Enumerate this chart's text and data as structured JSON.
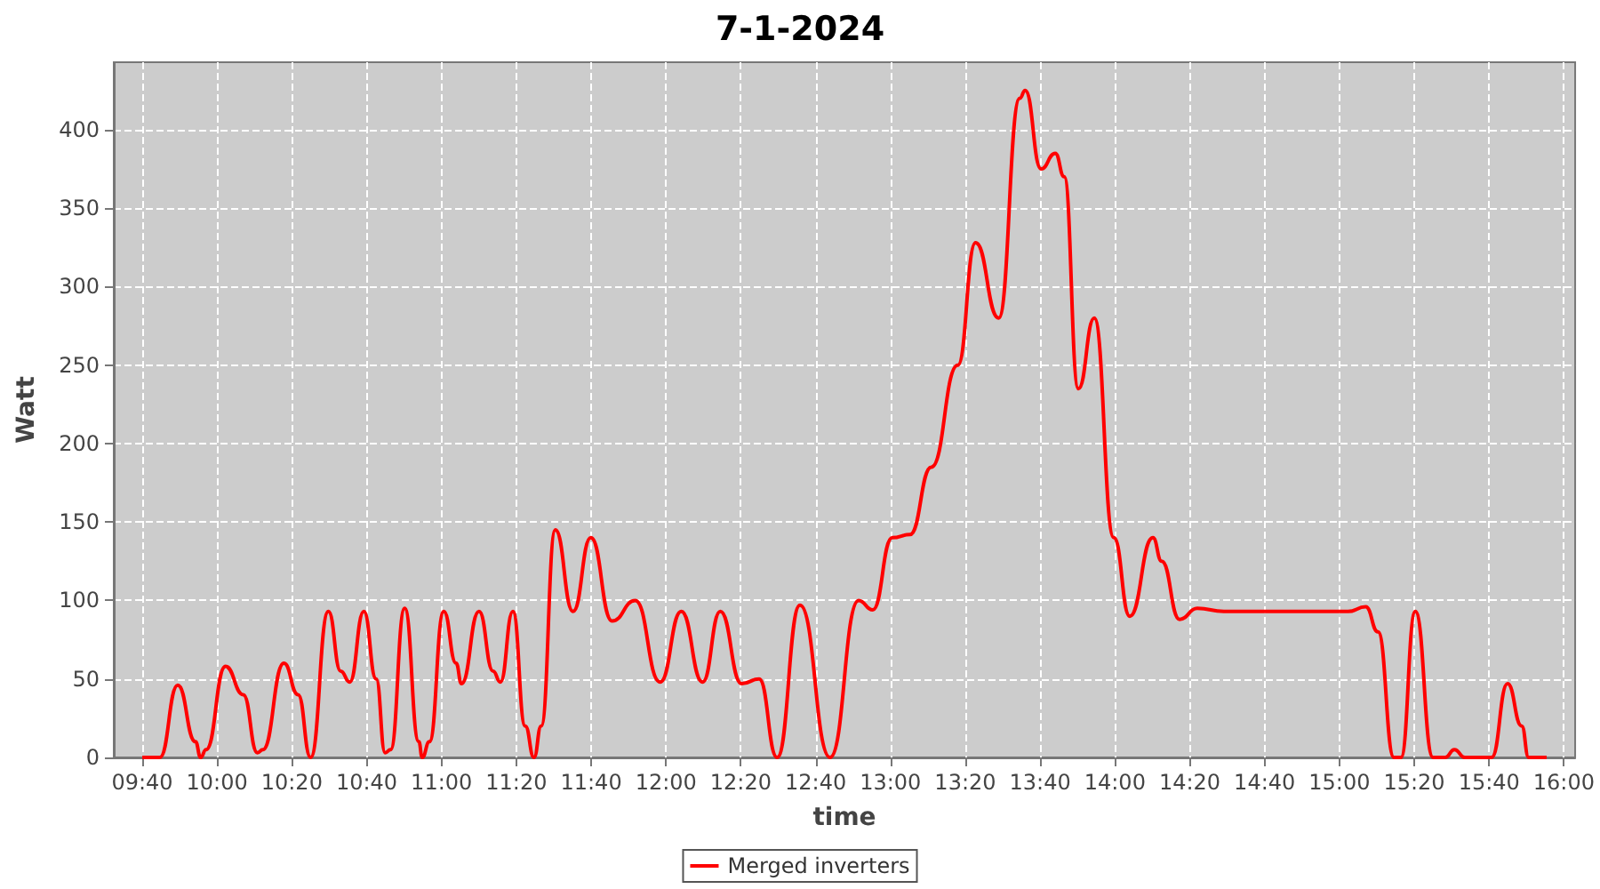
{
  "chart_data": {
    "type": "line",
    "title": "7-1-2024",
    "xlabel": "time",
    "ylabel": "Watt",
    "legend": "bottom",
    "grid": true,
    "marker": "none",
    "line_style": "solid",
    "xlim": [
      9.54,
      16.05
    ],
    "xticks": [
      {
        "value": 9.6667,
        "label": "09:40"
      },
      {
        "value": 10,
        "label": "10:00"
      },
      {
        "value": 10.3333,
        "label": "10:20"
      },
      {
        "value": 10.6667,
        "label": "10:40"
      },
      {
        "value": 11,
        "label": "11:00"
      },
      {
        "value": 11.3333,
        "label": "11:20"
      },
      {
        "value": 11.6667,
        "label": "11:40"
      },
      {
        "value": 12,
        "label": "12:00"
      },
      {
        "value": 12.3333,
        "label": "12:20"
      },
      {
        "value": 12.6667,
        "label": "12:40"
      },
      {
        "value": 13,
        "label": "13:00"
      },
      {
        "value": 13.3333,
        "label": "13:20"
      },
      {
        "value": 13.6667,
        "label": "13:40"
      },
      {
        "value": 14,
        "label": "14:00"
      },
      {
        "value": 14.3333,
        "label": "14:20"
      },
      {
        "value": 14.6667,
        "label": "14:40"
      },
      {
        "value": 15,
        "label": "15:00"
      },
      {
        "value": 15.3333,
        "label": "15:20"
      },
      {
        "value": 15.6667,
        "label": "15:40"
      },
      {
        "value": 16,
        "label": "16:00"
      }
    ],
    "ylim": [
      0,
      443
    ],
    "yticks": [
      0,
      50,
      100,
      150,
      200,
      250,
      300,
      350,
      400
    ],
    "series": [
      {
        "name": "Merged inverters",
        "color": "#ff0000",
        "x": [
          9.667,
          9.745,
          9.825,
          9.904,
          9.927,
          9.951,
          10.038,
          10.117,
          10.18,
          10.204,
          10.298,
          10.361,
          10.417,
          10.496,
          10.551,
          10.591,
          10.654,
          10.709,
          10.749,
          10.773,
          10.836,
          10.899,
          10.914,
          10.946,
          11.01,
          11.065,
          11.089,
          11.167,
          11.23,
          11.262,
          11.318,
          11.373,
          11.412,
          11.444,
          11.507,
          11.586,
          11.665,
          11.76,
          11.863,
          11.974,
          12.068,
          12.163,
          12.242,
          12.337,
          12.415,
          12.495,
          12.597,
          12.731,
          12.858,
          12.921,
          13.008,
          13.087,
          13.182,
          13.3,
          13.379,
          13.482,
          13.576,
          13.6,
          13.671,
          13.734,
          13.774,
          13.837,
          13.908,
          13.995,
          14.066,
          14.169,
          14.208,
          14.288,
          14.367,
          14.485,
          15.038,
          15.117,
          15.172,
          15.243,
          15.274,
          15.338,
          15.417,
          15.472,
          15.512,
          15.559,
          15.678,
          15.749,
          15.812,
          15.843,
          15.923
        ],
        "values": [
          0,
          0,
          46,
          10,
          0,
          5,
          58,
          40,
          3,
          5,
          60,
          40,
          0,
          93,
          55,
          48,
          93,
          50,
          3,
          5,
          95,
          10,
          0,
          10,
          93,
          60,
          47,
          93,
          55,
          48,
          93,
          20,
          0,
          20,
          145,
          93,
          140,
          87,
          100,
          48,
          93,
          48,
          93,
          47,
          50,
          0,
          97,
          0,
          100,
          94,
          140,
          142,
          185,
          250,
          328,
          280,
          420,
          425,
          375,
          385,
          370,
          235,
          280,
          140,
          90,
          140,
          125,
          88,
          95,
          93,
          93,
          96,
          80,
          0,
          0,
          93,
          0,
          0,
          5,
          0,
          0,
          47,
          20,
          0,
          0
        ]
      }
    ]
  }
}
